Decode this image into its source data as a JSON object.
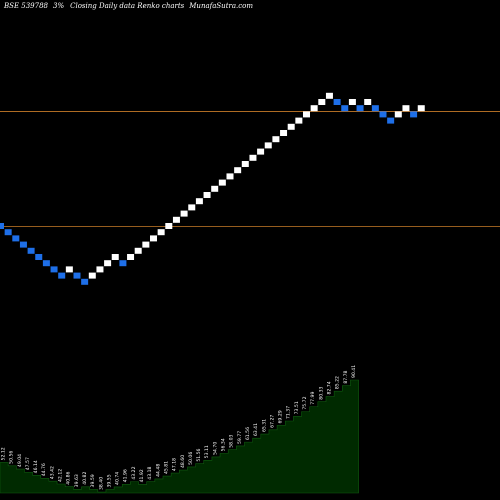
{
  "header": {
    "symbol": "BSE 539788",
    "brick": "3%",
    "chart_label": "Closing Daily data",
    "chart_name": "Renko  charts",
    "site": "MunafaSutra.com"
  },
  "colors": {
    "background": "#000000",
    "up_brick": "#ffffff",
    "down_brick": "#1e6fe8",
    "level_line": "#c87c28",
    "price_panel": "#002a00",
    "label_text": "#ffffff"
  },
  "chart_data": {
    "type": "renko",
    "title": "BSE 539788  3%   Closing Daily data  Renko  charts  MunafaSutra.com",
    "brick_percent": 3,
    "directions": [
      -1,
      -1,
      -1,
      -1,
      -1,
      -1,
      -1,
      -1,
      -1,
      1,
      -1,
      -1,
      1,
      1,
      1,
      1,
      -1,
      1,
      1,
      1,
      1,
      1,
      1,
      1,
      1,
      1,
      1,
      1,
      1,
      1,
      1,
      1,
      1,
      1,
      1,
      1,
      1,
      1,
      1,
      1,
      1,
      1,
      1,
      1,
      -1,
      -1,
      1,
      -1,
      1,
      -1,
      -1,
      -1,
      1,
      1,
      -1,
      1
    ],
    "prices": [
      52.12,
      50.56,
      49.04,
      47.57,
      46.14,
      44.76,
      43.42,
      42.12,
      40.86,
      39.63,
      40.82,
      39.59,
      38.4,
      39.55,
      40.74,
      41.96,
      43.22,
      41.92,
      43.18,
      44.48,
      45.81,
      47.18,
      48.6,
      50.06,
      51.56,
      53.11,
      54.7,
      56.34,
      58.03,
      59.77,
      61.56,
      63.41,
      65.31,
      67.27,
      69.29,
      71.37,
      73.51,
      75.72,
      77.99,
      80.33,
      82.74,
      85.22,
      87.78,
      90.41,
      93.12,
      90.33,
      87.62,
      90.25,
      87.54,
      90.17,
      87.46,
      84.84,
      82.29,
      84.76,
      87.3,
      84.68,
      87.22
    ],
    "reference_lines": [
      90.0,
      52.0
    ],
    "grid": false
  }
}
